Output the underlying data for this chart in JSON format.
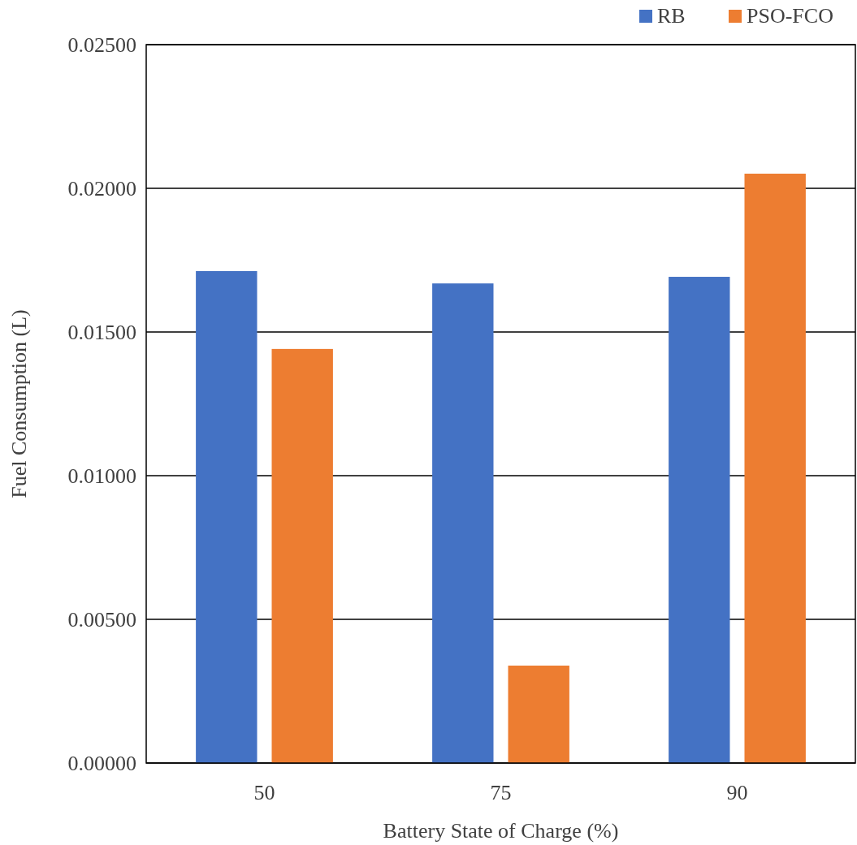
{
  "chart_data": {
    "type": "bar",
    "xlabel": "Battery State of Charge (%)",
    "ylabel": "Fuel Consumption (L)",
    "categories": [
      "50",
      "75",
      "90"
    ],
    "series": [
      {
        "name": "RB",
        "color": "#4472c4",
        "values": [
          0.01712,
          0.01669,
          0.01692
        ]
      },
      {
        "name": "PSO-FCO",
        "color": "#ed7d31",
        "values": [
          0.01441,
          0.00339,
          0.02051
        ]
      }
    ],
    "ylim": [
      0,
      0.025
    ],
    "yticks": [
      {
        "value": 0,
        "label": "0.00000"
      },
      {
        "value": 0.005,
        "label": "0.00500"
      },
      {
        "value": 0.01,
        "label": "0.01000"
      },
      {
        "value": 0.015,
        "label": "0.01500"
      },
      {
        "value": 0.02,
        "label": "0.02000"
      },
      {
        "value": 0.025,
        "label": "0.02500"
      }
    ],
    "grid": "y",
    "legend": "top right"
  }
}
